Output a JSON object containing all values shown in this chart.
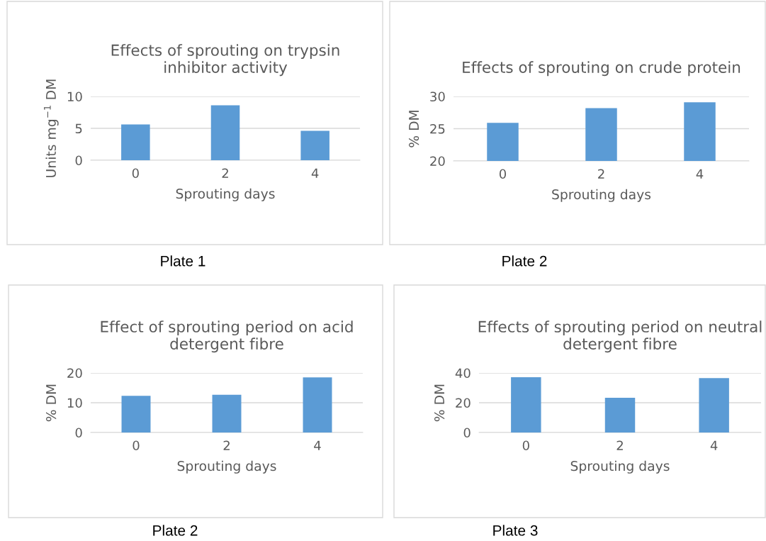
{
  "chart_data": [
    {
      "type": "bar",
      "title": "Effects of sprouting on trypsin inhibitor activity",
      "xlabel": "Sprouting days",
      "ylabel": "Units mg$^{−1}$ DM",
      "categories": [
        "0",
        "2",
        "4"
      ],
      "values": [
        5.6,
        8.6,
        4.6
      ],
      "color": "#5b9bd5",
      "ylim": [
        0,
        10
      ],
      "yticks": [
        0,
        5,
        10
      ],
      "grid": "y",
      "annotations": [
        "Plate 1"
      ]
    },
    {
      "type": "bar",
      "title": "Effects of sprouting on crude protein",
      "xlabel": "Sprouting days",
      "ylabel": "% DM",
      "categories": [
        "0",
        "2",
        "4"
      ],
      "values": [
        25.9,
        28.2,
        29.1
      ],
      "color": "#5b9bd5",
      "ylim": [
        20,
        30
      ],
      "yticks": [
        20,
        25,
        30
      ],
      "grid": "y",
      "annotations": [
        "Plate 2"
      ]
    },
    {
      "type": "bar",
      "title": "Effect of sprouting period on acid detergent fibre",
      "xlabel": "Sprouting days",
      "ylabel": "% DM",
      "categories": [
        "0",
        "2",
        "4"
      ],
      "values": [
        12.3,
        12.7,
        18.5
      ],
      "color": "#5b9bd5",
      "ylim": [
        0,
        20
      ],
      "yticks": [
        0,
        10,
        20
      ],
      "grid": "y",
      "annotations": [
        "Plate 2"
      ]
    },
    {
      "type": "bar",
      "title": "Effects of sprouting period on neutral detergent fibre",
      "xlabel": "Sprouting days",
      "ylabel": "% DM",
      "categories": [
        "0",
        "2",
        "4"
      ],
      "values": [
        37.1,
        23.3,
        36.5
      ],
      "color": "#5b9bd5",
      "ylim": [
        0,
        40
      ],
      "yticks": [
        0,
        20,
        40
      ],
      "grid": "y",
      "annotations": [
        "Plate 3"
      ]
    }
  ]
}
